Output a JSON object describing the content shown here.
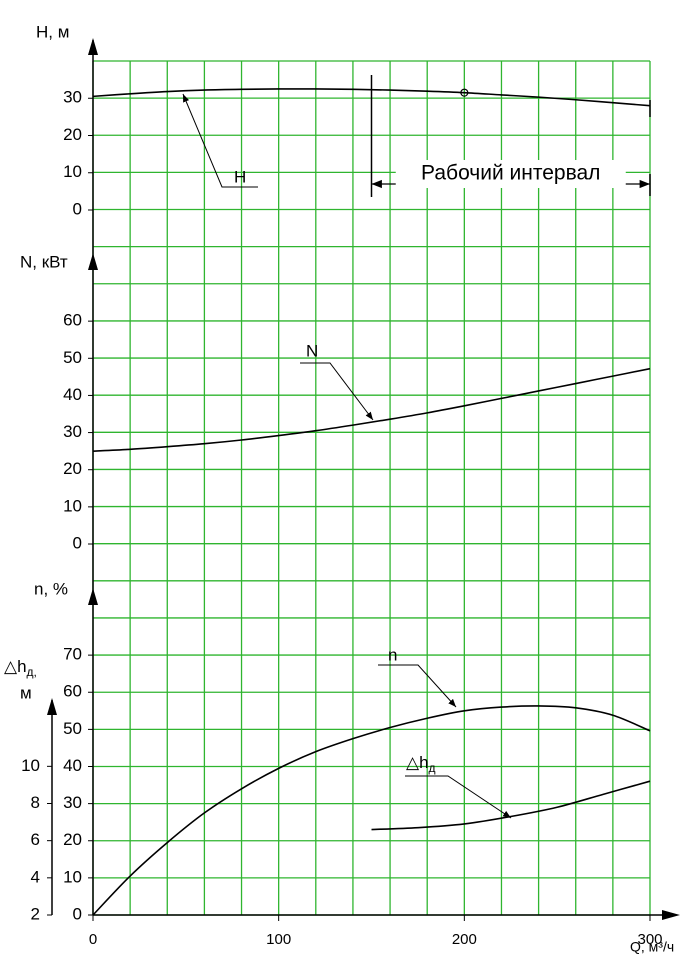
{
  "chart_data": [
    {
      "type": "line",
      "y_label": "H, м",
      "ylim": [
        0,
        40
      ],
      "yticks": [
        0,
        10,
        20,
        30
      ],
      "series": [
        {
          "name": "H",
          "color": "#000000",
          "x": [
            0,
            20,
            40,
            60,
            80,
            100,
            120,
            140,
            160,
            180,
            200,
            220,
            240,
            260,
            280,
            300
          ],
          "values": [
            30.5,
            31.2,
            31.8,
            32.2,
            32.4,
            32.5,
            32.5,
            32.4,
            32.2,
            31.9,
            31.5,
            30.9,
            30.3,
            29.6,
            28.8,
            28.0
          ]
        }
      ],
      "markers": [
        {
          "x": 200,
          "y": 31.5
        }
      ],
      "working_range": {
        "label": "Рабочий интервал",
        "x": [
          150,
          300
        ]
      }
    },
    {
      "type": "line",
      "y_label": "N, кВт",
      "ylim": [
        0,
        70
      ],
      "yticks": [
        0,
        10,
        20,
        30,
        40,
        50,
        60
      ],
      "series": [
        {
          "name": "N",
          "color": "#000000",
          "x": [
            0,
            20,
            40,
            60,
            80,
            100,
            120,
            140,
            160,
            180,
            200,
            220,
            240,
            260,
            280,
            300
          ],
          "values": [
            25,
            25.5,
            26.2,
            27,
            28,
            29.2,
            30.5,
            32,
            33.6,
            35.3,
            37.2,
            39.2,
            41.2,
            43.2,
            45.2,
            47.2
          ]
        }
      ]
    },
    {
      "type": "line",
      "y_label": "n, %",
      "ylim": [
        0,
        80
      ],
      "yticks": [
        0,
        10,
        20,
        30,
        40,
        50,
        60,
        70
      ],
      "xlim": [
        0,
        300
      ],
      "xticks": [
        0,
        100,
        200,
        300
      ],
      "x_label": "Q, м³/ч",
      "series": [
        {
          "name": "n",
          "color": "#000000",
          "x": [
            0,
            20,
            40,
            60,
            80,
            100,
            120,
            140,
            160,
            180,
            200,
            220,
            240,
            260,
            280,
            300
          ],
          "values": [
            0,
            10.5,
            19.5,
            27.5,
            34,
            39.5,
            44,
            47.5,
            50.5,
            53,
            55,
            56,
            56.3,
            55.8,
            53.8,
            49.6
          ]
        }
      ]
    },
    {
      "type": "line",
      "y_label_main": "△h",
      "y_label_sub": "д,",
      "y_label_unit": "м",
      "ylim": [
        2,
        14
      ],
      "yticks": [
        2,
        4,
        6,
        8,
        10
      ],
      "series": [
        {
          "name": "△h",
          "name_sub": "д",
          "color": "#000000",
          "x": [
            150,
            175,
            200,
            225,
            250,
            275,
            300
          ],
          "values": [
            6.6,
            6.7,
            6.9,
            7.3,
            7.8,
            8.5,
            9.2
          ]
        }
      ]
    }
  ]
}
